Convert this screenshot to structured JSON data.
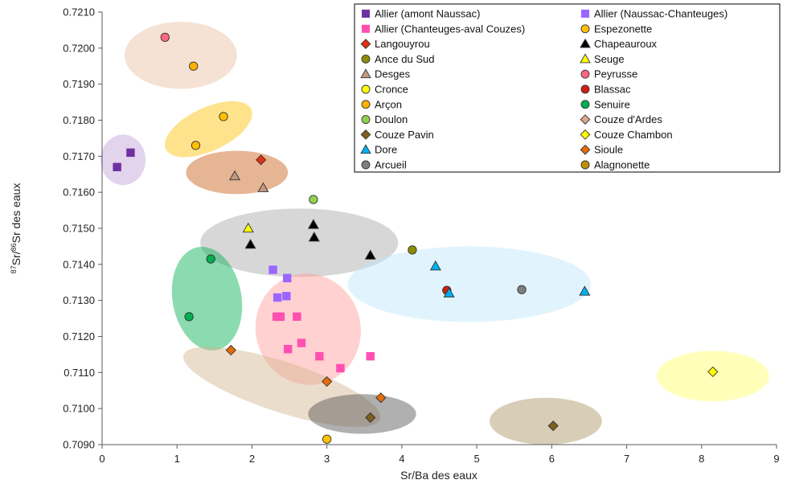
{
  "chart_data": {
    "type": "scatter",
    "xlabel": "Sr/Ba des eaux",
    "ylabel": {
      "sup1": "87",
      "mid1": "Sr/",
      "sup2": "86",
      "mid2": "Sr des eaux"
    },
    "xlim": [
      0,
      9
    ],
    "ylim": [
      0.709,
      0.721
    ],
    "x_ticks": [
      "0",
      "1",
      "2",
      "3",
      "4",
      "5",
      "6",
      "7",
      "8",
      "9"
    ],
    "y_ticks": [
      "0.7090",
      "0.7100",
      "0.7110",
      "0.7120",
      "0.7130",
      "0.7140",
      "0.7150",
      "0.7160",
      "0.7170",
      "0.7180",
      "0.7190",
      "0.7200",
      "0.7210"
    ],
    "grid": false,
    "legend_position": "top-right",
    "series": [
      {
        "name": "Allier (amont Naussac)",
        "marker": "square",
        "color": "#7030A0",
        "points": [
          [
            0.2,
            0.7167
          ],
          [
            0.38,
            0.7171
          ]
        ]
      },
      {
        "name": "Allier (Naussac-Chanteuges)",
        "marker": "square",
        "color": "#9966FF",
        "points": [
          [
            2.28,
            0.71385
          ],
          [
            2.47,
            0.71362
          ],
          [
            2.34,
            0.71308
          ],
          [
            2.46,
            0.71312
          ]
        ]
      },
      {
        "name": "Allier (Chanteuges-aval Couzes)",
        "marker": "square",
        "color": "#FF4FB0",
        "points": [
          [
            2.33,
            0.71255
          ],
          [
            2.38,
            0.71255
          ],
          [
            2.6,
            0.71255
          ],
          [
            2.48,
            0.71165
          ],
          [
            2.66,
            0.71182
          ],
          [
            2.9,
            0.71145
          ],
          [
            3.18,
            0.71112
          ],
          [
            3.58,
            0.71145
          ]
        ]
      },
      {
        "name": "Espezonette",
        "marker": "circle",
        "color": "#FFC000",
        "points": [
          [
            1.62,
            0.7181
          ],
          [
            1.25,
            0.7173
          ],
          [
            3.0,
            0.70915
          ]
        ]
      },
      {
        "name": "Langouyrou",
        "marker": "diamond",
        "color": "#E03010",
        "points": [
          [
            2.12,
            0.7169
          ]
        ]
      },
      {
        "name": "Chapeauroux",
        "marker": "triangle",
        "color": "#000000",
        "points": [
          [
            1.98,
            0.71455
          ],
          [
            2.82,
            0.7151
          ],
          [
            2.83,
            0.71475
          ],
          [
            3.58,
            0.71425
          ]
        ]
      },
      {
        "name": "Ance du Sud",
        "marker": "circle",
        "color": "#8C8C00",
        "points": [
          [
            4.14,
            0.7144
          ]
        ]
      },
      {
        "name": "Seuge",
        "marker": "triangle",
        "color": "#FFFF00",
        "points": [
          [
            1.95,
            0.715
          ]
        ]
      },
      {
        "name": "Desges",
        "marker": "triangle",
        "color": "#C09880",
        "points": [
          [
            1.77,
            0.71645
          ],
          [
            2.15,
            0.71612
          ]
        ]
      },
      {
        "name": "Peyrusse",
        "marker": "circle",
        "color": "#FF6680",
        "points": [
          [
            0.84,
            0.7203
          ]
        ]
      },
      {
        "name": "Cronce",
        "marker": "circle",
        "color": "#FFFF00",
        "points": []
      },
      {
        "name": "Blassac",
        "marker": "circle",
        "color": "#D02010",
        "points": [
          [
            4.6,
            0.71328
          ]
        ]
      },
      {
        "name": "Arçon",
        "marker": "circle",
        "color": "#FFB000",
        "points": [
          [
            1.22,
            0.7195
          ]
        ]
      },
      {
        "name": "Senuire",
        "marker": "circle",
        "color": "#00B050",
        "points": [
          [
            1.45,
            0.71415
          ],
          [
            1.16,
            0.71255
          ]
        ]
      },
      {
        "name": "Doulon",
        "marker": "circle",
        "color": "#92D050",
        "points": [
          [
            2.82,
            0.7158
          ]
        ]
      },
      {
        "name": "Couze d'Ardes",
        "marker": "diamond",
        "color": "#D8A888",
        "points": []
      },
      {
        "name": "Couze Pavin",
        "marker": "diamond",
        "color": "#7F5F1F",
        "points": [
          [
            3.58,
            0.70975
          ],
          [
            6.02,
            0.70952
          ]
        ]
      },
      {
        "name": "Couze Chambon",
        "marker": "diamond",
        "color": "#FFFF00",
        "points": [
          [
            8.15,
            0.71102
          ]
        ]
      },
      {
        "name": "Dore",
        "marker": "triangle",
        "color": "#00B0F0",
        "points": [
          [
            4.45,
            0.71395
          ],
          [
            4.63,
            0.7132
          ],
          [
            6.44,
            0.71325
          ]
        ]
      },
      {
        "name": "Sioule",
        "marker": "diamond",
        "color": "#E46C0A",
        "points": [
          [
            1.72,
            0.71162
          ],
          [
            3.0,
            0.71075
          ],
          [
            3.72,
            0.7103
          ]
        ]
      },
      {
        "name": "Arcueil",
        "marker": "circle",
        "color": "#7F7F7F",
        "points": [
          [
            5.6,
            0.7133
          ]
        ]
      },
      {
        "name": "Alagnonette",
        "marker": "circle",
        "color": "#C09000",
        "points": []
      }
    ],
    "shaded_groups": [
      {
        "color": "#E8BFA0",
        "cx": 1.05,
        "cy": 0.7198,
        "rx": 0.75,
        "ry": 0.00093,
        "angle": 0
      },
      {
        "color": "#FFC000",
        "cx": 1.42,
        "cy": 0.71775,
        "rx": 0.63,
        "ry": 0.0006,
        "angle": -25
      },
      {
        "color": "#BFA0D8",
        "cx": 0.28,
        "cy": 0.7169,
        "rx": 0.3,
        "ry": 0.0007,
        "angle": 0
      },
      {
        "color": "#C55A11",
        "cx": 1.8,
        "cy": 0.71655,
        "rx": 0.68,
        "ry": 0.0006,
        "angle": 0
      },
      {
        "color": "#A6A6A6",
        "cx": 2.63,
        "cy": 0.7146,
        "rx": 1.32,
        "ry": 0.00095,
        "angle": 0
      },
      {
        "color": "#00B050",
        "cx": 1.4,
        "cy": 0.71305,
        "rx": 0.46,
        "ry": 0.00145,
        "angle": -10
      },
      {
        "color": "#BDE7FA",
        "cx": 4.9,
        "cy": 0.71345,
        "rx": 1.62,
        "ry": 0.00105,
        "angle": 0
      },
      {
        "color": "#FF9999",
        "cx": 2.75,
        "cy": 0.7122,
        "rx": 0.7,
        "ry": 0.00155,
        "angle": -15
      },
      {
        "color": "#D2B48C",
        "cx": 2.4,
        "cy": 0.7106,
        "rx": 1.38,
        "ry": 0.0007,
        "angle": 18
      },
      {
        "color": "#505050",
        "cx": 3.47,
        "cy": 0.70985,
        "rx": 0.72,
        "ry": 0.00055,
        "angle": 0
      },
      {
        "color": "#A89060",
        "cx": 5.92,
        "cy": 0.70965,
        "rx": 0.75,
        "ry": 0.00065,
        "angle": 0
      },
      {
        "color": "#FFFF66",
        "cx": 8.15,
        "cy": 0.7109,
        "rx": 0.75,
        "ry": 0.0007,
        "angle": 0
      }
    ]
  }
}
